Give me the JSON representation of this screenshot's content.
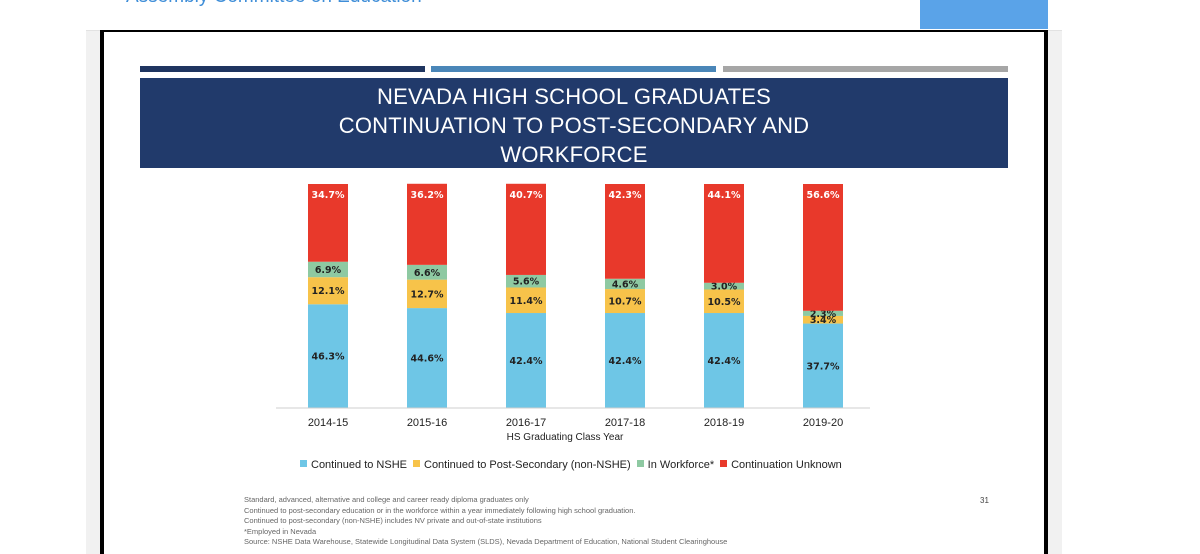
{
  "header": {
    "title": "Assembly Committee on Education"
  },
  "slide": {
    "title_lines": [
      "NEVADA HIGH SCHOOL GRADUATES",
      "CONTINUATION TO POST-SECONDARY AND",
      "WORKFORCE"
    ],
    "footnotes": [
      "Standard, advanced, alternative and college and career ready diploma graduates only",
      "Continued to post-secondary education or in the workforce within a year immediately following high school graduation.",
      "Continued to post-secondary (non-NSHE) includes NV private and out-of-state institutions",
      "*Employed in Nevada",
      "Source: NSHE Data Warehouse, Statewide Longitudinal Data System (SLDS), Nevada Department of Education, National Student Clearinghouse"
    ],
    "page_number": "31"
  },
  "colors": {
    "stripe_1": "#1f3560",
    "stripe_2": "#4a86b8",
    "stripe_3": "#a6a6a6",
    "title_bg": "#213a6b"
  },
  "chart_data": {
    "type": "bar",
    "stacked": true,
    "percent_stacked": true,
    "categories": [
      "2014-15",
      "2015-16",
      "2016-17",
      "2017-18",
      "2018-19",
      "2019-20"
    ],
    "xlabel": "HS Graduating Class Year",
    "ylim": [
      0,
      100
    ],
    "grid": false,
    "legend_position": "bottom",
    "series": [
      {
        "name": "Continued to NSHE",
        "color": "#6ec6e6",
        "values": [
          46.3,
          44.6,
          42.4,
          42.4,
          42.4,
          37.7
        ],
        "labels": [
          "46.3%",
          "44.6%",
          "42.4%",
          "42.4%",
          "42.4%",
          "37.7%"
        ]
      },
      {
        "name": "Continued to Post-Secondary (non-NSHE)",
        "color": "#f7c34a",
        "values": [
          12.1,
          12.7,
          11.4,
          10.7,
          10.5,
          3.4
        ],
        "labels": [
          "12.1%",
          "12.7%",
          "11.4%",
          "10.7%",
          "10.5%",
          "3.4%"
        ]
      },
      {
        "name": "In Workforce*",
        "color": "#8ec9a2",
        "values": [
          6.9,
          6.6,
          5.6,
          4.6,
          3.0,
          2.3
        ],
        "labels": [
          "6.9%",
          "6.6%",
          "5.6%",
          "4.6%",
          "3.0%",
          "2.3%"
        ]
      },
      {
        "name": "Continuation Unknown",
        "color": "#e8392b",
        "values": [
          34.7,
          36.2,
          40.7,
          42.3,
          44.1,
          56.6
        ],
        "labels": [
          "34.7%",
          "36.2%",
          "40.7%",
          "42.3%",
          "44.1%",
          "56.6%"
        ]
      }
    ]
  }
}
